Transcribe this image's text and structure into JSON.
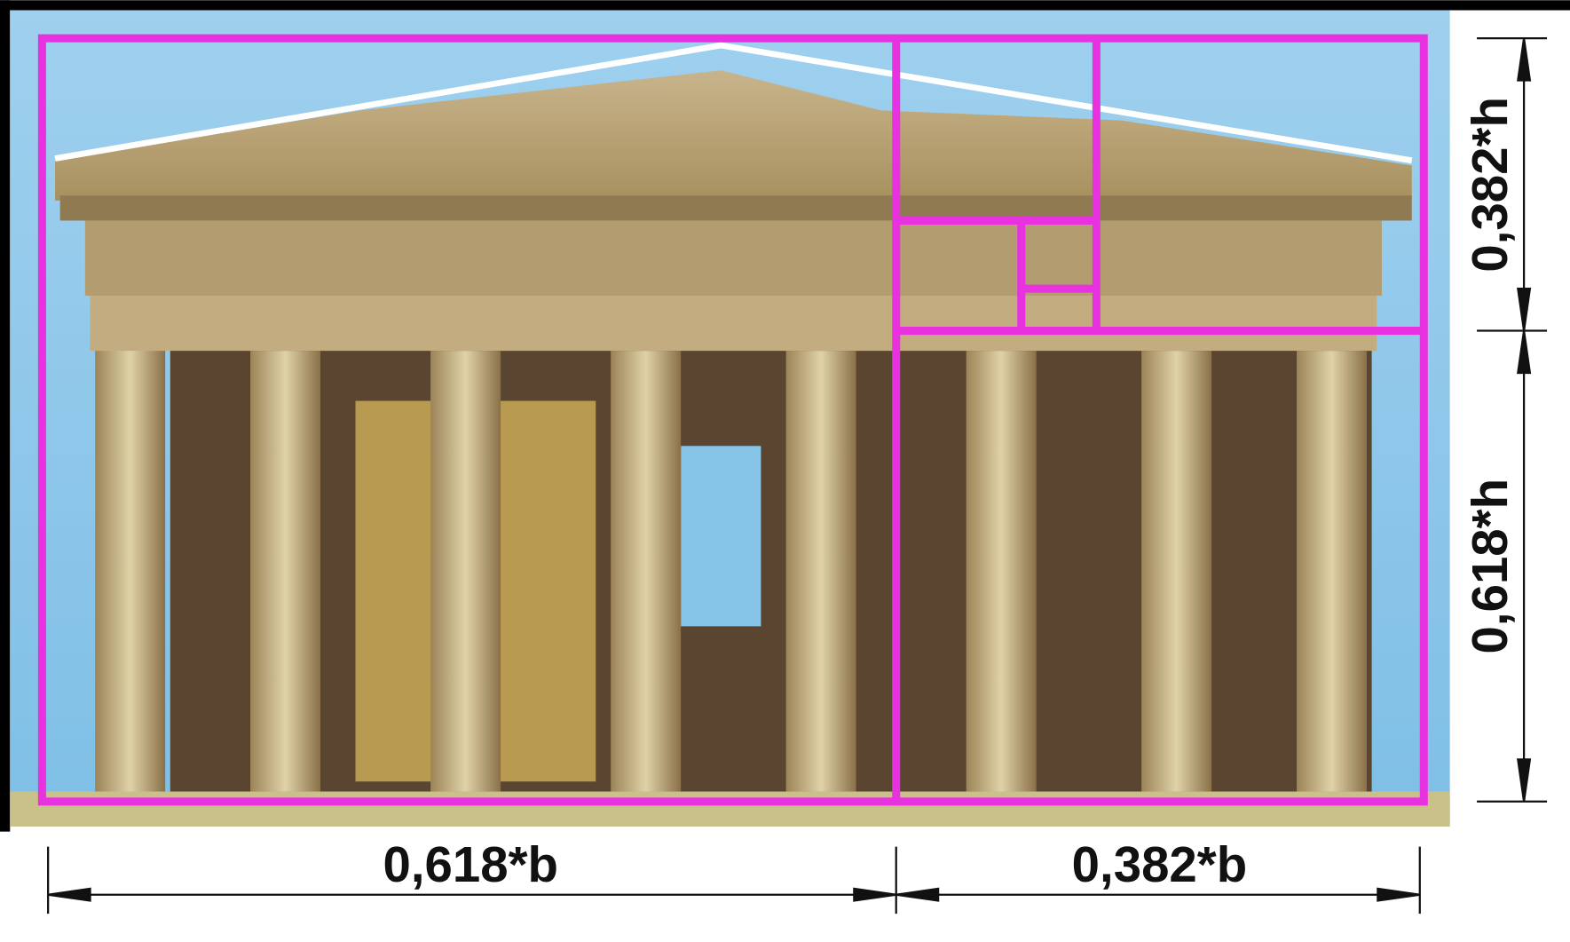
{
  "dimensions": {
    "width_labels": [
      "0,618*b",
      "0,382*b"
    ],
    "height_labels": [
      "0,382*h",
      "0,618*h"
    ]
  }
}
